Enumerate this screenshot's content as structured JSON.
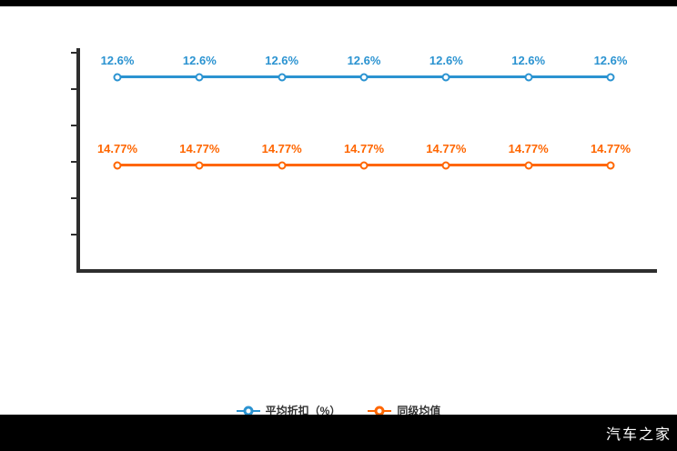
{
  "watermark": "汽车之家",
  "colors": {
    "series_blue": "#2b93d1",
    "series_orange": "#ff6600",
    "axis": "#2e2e2e",
    "frame_bars": "#000000",
    "watermark_text": "#ffffff"
  },
  "chart_data": {
    "type": "line",
    "unit": "%",
    "series": [
      {
        "name": "平均折扣（%）",
        "color": "#2b93d1",
        "values": [
          12.6,
          12.6,
          12.6,
          12.6,
          12.6,
          12.6,
          12.6
        ],
        "point_labels": [
          "12.6%",
          "12.6%",
          "12.6%",
          "12.6%",
          "12.6%",
          "12.6%",
          "12.6%"
        ]
      },
      {
        "name": "同级均值",
        "color": "#ff6600",
        "values": [
          14.77,
          14.77,
          14.77,
          14.77,
          14.77,
          14.77,
          14.77
        ],
        "point_labels": [
          "14.77%",
          "14.77%",
          "14.77%",
          "14.77%",
          "14.77%",
          "14.77%",
          "14.77%"
        ]
      }
    ],
    "grid": false,
    "x_axis_labels": [],
    "y_axis_labels": [],
    "legend_position": "bottom"
  }
}
